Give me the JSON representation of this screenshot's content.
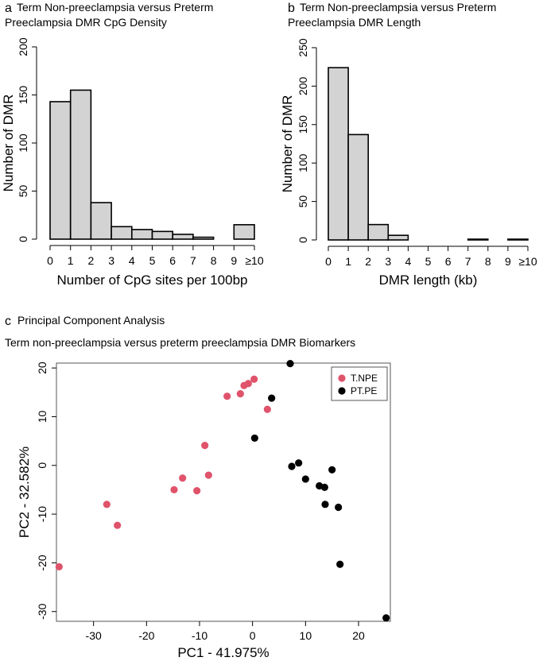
{
  "chart_data": [
    {
      "type": "bar",
      "panel_label": "a",
      "title_line1": "Term Non-preeclampsia versus Preterm",
      "title_line2": "Preeclampsia DMR CpG Density",
      "xlabel": "Number of CpG sites per 100bp",
      "ylabel": "Number of DMR",
      "categories": [
        "0-1",
        "1-2",
        "2-3",
        "3-4",
        "4-5",
        "5-6",
        "6-7",
        "7-8",
        "8-9",
        "≥10"
      ],
      "values": [
        143,
        155,
        38,
        13,
        10,
        8,
        5,
        2,
        0,
        15
      ],
      "xticks": [
        "0",
        "1",
        "2",
        "3",
        "4",
        "5",
        "6",
        "7",
        "8",
        "9",
        "≥10"
      ],
      "yticks": [
        0,
        50,
        100,
        150,
        200
      ],
      "ylim": [
        0,
        200
      ],
      "fill_color": "#d3d3d3"
    },
    {
      "type": "bar",
      "panel_label": "b",
      "title_line1": "Term Non-preeclampsia versus Preterm",
      "title_line2": "Preeclampsia  DMR Length",
      "xlabel": "DMR length (kb)",
      "ylabel": "Number of DMR",
      "categories": [
        "0-1",
        "1-2",
        "2-3",
        "3-4",
        "4-5",
        "5-6",
        "6-7",
        "7-8",
        "8-9",
        "≥10"
      ],
      "values": [
        224,
        137,
        20,
        6,
        0,
        0,
        0,
        1,
        0,
        1
      ],
      "xticks": [
        "0",
        "1",
        "2",
        "3",
        "4",
        "5",
        "6",
        "7",
        "8",
        "9",
        "≥10"
      ],
      "yticks": [
        0,
        50,
        100,
        150,
        200,
        250
      ],
      "ylim": [
        0,
        250
      ],
      "fill_color": "#d3d3d3"
    },
    {
      "type": "scatter",
      "panel_label": "c",
      "title_line1": "Principal Component Analysis",
      "title_line2": "Term non-preeclampsia versus preterm preeclampsia DMR Biomarkers",
      "xlabel": "PC1 - 41.975%",
      "ylabel": "PC2 - 32.582%",
      "xticks": [
        -30,
        -20,
        -10,
        0,
        10,
        20
      ],
      "yticks": [
        -30,
        -20,
        -10,
        0,
        10,
        20
      ],
      "xlim": [
        -37,
        26
      ],
      "ylim": [
        -32,
        21
      ],
      "legend_position": "top-right",
      "series": [
        {
          "name": "T.NPE",
          "color": "#df536b",
          "points": [
            [
              -36.5,
              -20.8
            ],
            [
              -27.5,
              -8.0
            ],
            [
              -25.5,
              -12.3
            ],
            [
              -14.8,
              -5.0
            ],
            [
              -13.2,
              -2.6
            ],
            [
              -10.5,
              -5.2
            ],
            [
              -9.0,
              4.1
            ],
            [
              -8.3,
              -2.0
            ],
            [
              -4.8,
              14.2
            ],
            [
              -2.3,
              14.7
            ],
            [
              -1.6,
              16.4
            ],
            [
              -0.8,
              16.8
            ],
            [
              0.3,
              17.7
            ],
            [
              2.8,
              11.5
            ]
          ]
        },
        {
          "name": "PT.PE",
          "color": "#000000",
          "points": [
            [
              7.1,
              20.9
            ],
            [
              3.6,
              13.8
            ],
            [
              0.4,
              5.6
            ],
            [
              7.4,
              -0.2
            ],
            [
              8.7,
              0.5
            ],
            [
              10.0,
              -2.8
            ],
            [
              12.6,
              -4.2
            ],
            [
              13.6,
              -4.5
            ],
            [
              13.7,
              -8.0
            ],
            [
              15.0,
              -0.9
            ],
            [
              16.2,
              -8.6
            ],
            [
              16.5,
              -20.3
            ],
            [
              25.2,
              -31.3
            ]
          ]
        }
      ]
    }
  ]
}
